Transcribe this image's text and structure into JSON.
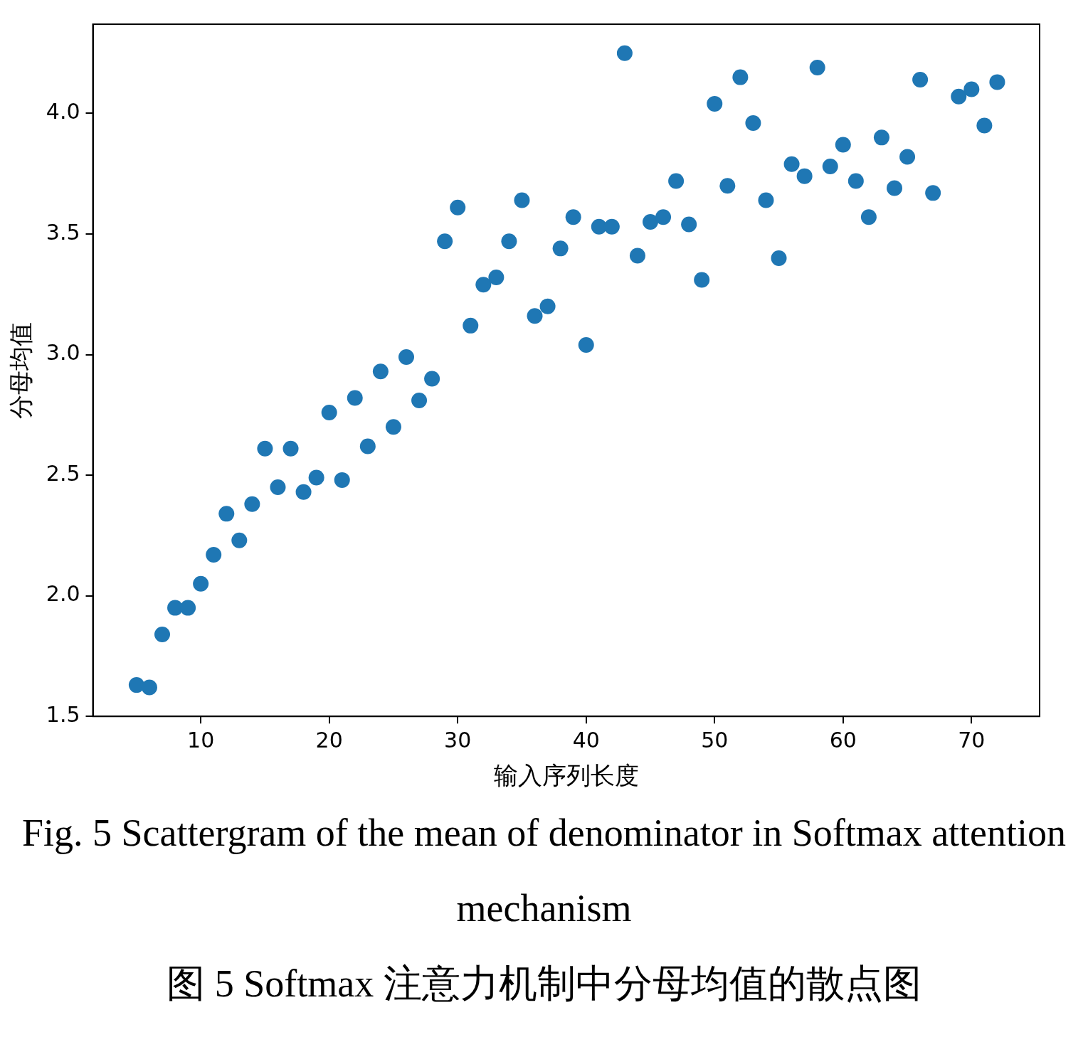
{
  "chart_data": {
    "type": "scatter",
    "xlabel": "输入序列长度",
    "ylabel": "分母均值",
    "x": [
      5,
      6,
      7,
      8,
      9,
      10,
      11,
      12,
      13,
      14,
      15,
      16,
      17,
      18,
      19,
      20,
      21,
      22,
      23,
      24,
      25,
      26,
      27,
      28,
      29,
      30,
      31,
      32,
      33,
      34,
      35,
      36,
      37,
      38,
      39,
      40,
      41,
      42,
      43,
      44,
      45,
      46,
      47,
      48,
      49,
      50,
      51,
      52,
      53,
      54,
      55,
      56,
      57,
      58,
      59,
      60,
      61,
      62,
      63,
      64,
      65,
      66,
      67,
      69,
      70,
      71,
      72
    ],
    "series": [
      {
        "color": "#1f77b4",
        "values": [
          1.63,
          1.62,
          1.84,
          1.95,
          1.95,
          2.05,
          2.17,
          2.34,
          2.23,
          2.38,
          2.61,
          2.45,
          2.61,
          2.43,
          2.49,
          2.76,
          2.48,
          2.82,
          2.62,
          2.93,
          2.7,
          2.99,
          2.81,
          2.9,
          3.47,
          3.61,
          3.12,
          3.29,
          3.32,
          3.47,
          3.64,
          3.16,
          3.2,
          3.44,
          3.57,
          3.04,
          3.53,
          3.53,
          4.25,
          3.41,
          3.55,
          3.57,
          3.72,
          3.54,
          3.31,
          4.04,
          3.7,
          4.15,
          3.96,
          3.64,
          3.4,
          3.79,
          3.74,
          4.19,
          3.78,
          3.87,
          3.72,
          3.57,
          3.9,
          3.69,
          3.82,
          4.14,
          3.67,
          4.07,
          4.1,
          3.95,
          4.13
        ]
      }
    ],
    "xlim": [
      1.6,
      75.3
    ],
    "xticks": [
      10,
      20,
      30,
      40,
      50,
      60,
      70
    ],
    "ylim": [
      1.5,
      4.37
    ],
    "yticks": [
      {
        "value": 1.5,
        "label": "1.5"
      },
      {
        "value": 2,
        "label": "2.0"
      },
      {
        "value": 2.5,
        "label": "2.5"
      },
      {
        "value": 3,
        "label": "3.0"
      },
      {
        "value": 3.5,
        "label": "3.5"
      },
      {
        "value": 4,
        "label": "4.0"
      }
    ],
    "grid": false,
    "legend": false,
    "marker": "circle",
    "annotations": [
      "Fig. 5 Scattergram of the mean of denominator in Softmax attention mechanism",
      "图  5 Softmax 注意力机制中分母均值的散点图"
    ]
  }
}
